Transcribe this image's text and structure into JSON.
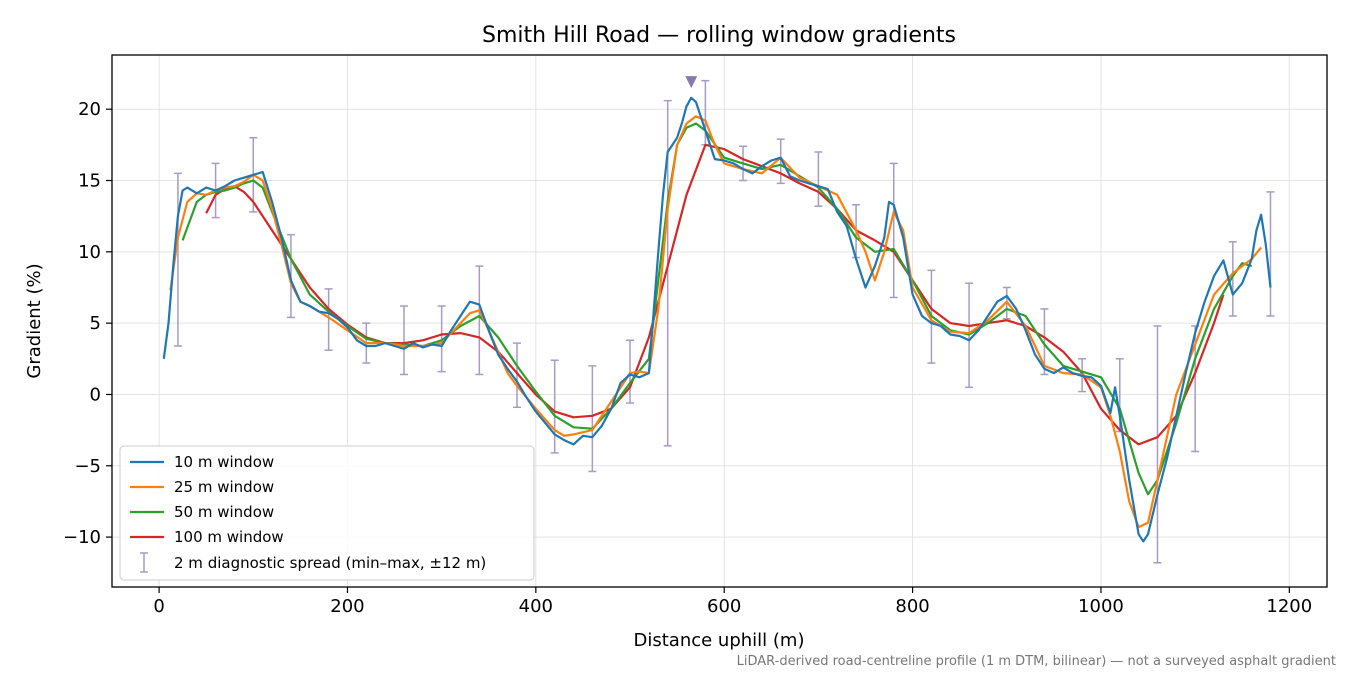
{
  "chart_data": {
    "type": "line",
    "title": "Smith Hill Road — rolling window gradients",
    "xlabel": "Distance uphill (m)",
    "ylabel": "Gradient (%)",
    "footnote": "LiDAR-derived road-centreline profile (1 m DTM, bilinear) — not a surveyed asphalt gradient",
    "xlim": [
      -50,
      1240
    ],
    "ylim": [
      -13.5,
      23.8
    ],
    "xticks": [
      0,
      200,
      400,
      600,
      800,
      1000,
      1200
    ],
    "xtick_labels": [
      "0",
      "200",
      "400",
      "600",
      "800",
      "1000",
      "1200"
    ],
    "yticks": [
      -10,
      -5,
      0,
      5,
      10,
      15,
      20
    ],
    "ytick_labels": [
      "−10",
      "−5",
      "0",
      "5",
      "10",
      "15",
      "20"
    ],
    "grid": true,
    "legend_position": "lower-left",
    "series": [
      {
        "name": "10 m window",
        "color": "#1f77b4",
        "x": [
          5,
          10,
          15,
          20,
          25,
          30,
          40,
          50,
          60,
          70,
          80,
          90,
          100,
          110,
          120,
          130,
          140,
          150,
          160,
          170,
          180,
          190,
          200,
          210,
          220,
          230,
          240,
          250,
          260,
          270,
          280,
          290,
          300,
          310,
          320,
          330,
          340,
          350,
          360,
          370,
          380,
          390,
          400,
          410,
          420,
          430,
          440,
          450,
          460,
          470,
          480,
          490,
          500,
          510,
          520,
          530,
          535,
          540,
          545,
          550,
          555,
          560,
          565,
          570,
          575,
          580,
          590,
          600,
          610,
          620,
          630,
          640,
          650,
          660,
          670,
          680,
          690,
          700,
          710,
          720,
          730,
          740,
          750,
          760,
          770,
          775,
          780,
          790,
          800,
          810,
          820,
          830,
          840,
          850,
          860,
          870,
          880,
          890,
          900,
          910,
          920,
          930,
          940,
          950,
          960,
          970,
          980,
          990,
          1000,
          1010,
          1015,
          1020,
          1030,
          1040,
          1045,
          1050,
          1060,
          1070,
          1080,
          1090,
          1100,
          1110,
          1120,
          1130,
          1140,
          1150,
          1160,
          1165,
          1170,
          1175,
          1180
        ],
        "y": [
          2.5,
          5.0,
          9.0,
          12.5,
          14.3,
          14.5,
          14.1,
          14.5,
          14.3,
          14.6,
          15.0,
          15.2,
          15.4,
          15.6,
          13.5,
          11.0,
          8.0,
          6.5,
          6.2,
          5.8,
          5.7,
          5.3,
          4.7,
          3.8,
          3.4,
          3.4,
          3.6,
          3.4,
          3.2,
          3.6,
          3.3,
          3.5,
          3.4,
          4.5,
          5.5,
          6.5,
          6.3,
          4.5,
          2.8,
          1.8,
          0.9,
          -0.2,
          -1.2,
          -2.0,
          -2.8,
          -3.2,
          -3.5,
          -2.9,
          -3.0,
          -2.2,
          -1.0,
          0.8,
          1.4,
          1.2,
          1.5,
          10.0,
          14.0,
          17.0,
          17.5,
          18.0,
          19.0,
          20.2,
          20.8,
          20.5,
          19.5,
          18.5,
          16.5,
          16.4,
          16.2,
          15.8,
          15.5,
          16.0,
          16.4,
          16.6,
          15.3,
          15.0,
          14.8,
          14.6,
          14.4,
          12.8,
          11.8,
          9.5,
          7.5,
          9.0,
          11.0,
          13.5,
          13.3,
          11.0,
          7.0,
          5.5,
          5.0,
          4.8,
          4.2,
          4.1,
          3.8,
          4.5,
          5.5,
          6.5,
          6.9,
          6.0,
          4.5,
          2.8,
          1.8,
          1.5,
          1.9,
          1.5,
          1.3,
          1.2,
          0.6,
          -1.3,
          0.5,
          -1.5,
          -6.0,
          -9.8,
          -10.3,
          -9.8,
          -7.0,
          -4.5,
          -1.5,
          1.5,
          4.3,
          6.5,
          8.3,
          9.4,
          7.0,
          7.8,
          9.5,
          11.5,
          12.6,
          10.5,
          7.5
        ]
      },
      {
        "name": "25 m window",
        "color": "#ff7f0e",
        "x": [
          12,
          20,
          30,
          40,
          50,
          60,
          70,
          80,
          90,
          100,
          110,
          120,
          130,
          140,
          150,
          160,
          180,
          200,
          220,
          240,
          260,
          280,
          300,
          310,
          320,
          330,
          340,
          350,
          360,
          370,
          380,
          400,
          420,
          430,
          440,
          460,
          480,
          500,
          510,
          520,
          530,
          540,
          550,
          560,
          570,
          580,
          590,
          600,
          620,
          640,
          660,
          680,
          700,
          720,
          740,
          750,
          760,
          770,
          780,
          790,
          800,
          820,
          840,
          860,
          880,
          900,
          920,
          940,
          960,
          980,
          1000,
          1010,
          1020,
          1030,
          1040,
          1050,
          1060,
          1070,
          1080,
          1100,
          1120,
          1140,
          1150,
          1160,
          1170
        ],
        "y": [
          7.3,
          11.0,
          13.5,
          14.1,
          14.0,
          14.3,
          14.5,
          14.6,
          14.9,
          15.4,
          15.0,
          13.0,
          10.5,
          7.8,
          6.5,
          6.2,
          5.4,
          4.5,
          3.6,
          3.6,
          3.4,
          3.4,
          3.6,
          4.3,
          5.0,
          5.7,
          5.9,
          4.5,
          3.0,
          1.5,
          0.6,
          -1.0,
          -2.5,
          -2.9,
          -2.8,
          -2.5,
          -0.5,
          1.5,
          1.6,
          1.5,
          6.0,
          13.0,
          17.5,
          19.0,
          19.5,
          19.2,
          17.5,
          16.2,
          15.8,
          15.5,
          16.6,
          15.2,
          14.6,
          14.0,
          11.5,
          10.0,
          8.0,
          10.0,
          12.8,
          11.5,
          7.5,
          5.2,
          4.4,
          4.3,
          5.2,
          6.5,
          4.8,
          2.0,
          1.5,
          1.4,
          0.5,
          -1.5,
          -4.0,
          -7.5,
          -9.3,
          -9.0,
          -6.0,
          -3.0,
          0.0,
          3.5,
          7.0,
          8.5,
          9.0,
          9.5,
          10.3
        ]
      },
      {
        "name": "50 m window",
        "color": "#2ca02c",
        "x": [
          25,
          40,
          50,
          60,
          70,
          80,
          90,
          100,
          110,
          120,
          140,
          160,
          180,
          200,
          220,
          240,
          260,
          280,
          300,
          320,
          340,
          360,
          380,
          400,
          420,
          440,
          460,
          480,
          500,
          520,
          530,
          540,
          550,
          560,
          570,
          580,
          600,
          620,
          640,
          660,
          680,
          700,
          720,
          740,
          760,
          780,
          800,
          820,
          840,
          860,
          880,
          900,
          920,
          940,
          960,
          980,
          1000,
          1020,
          1040,
          1050,
          1060,
          1080,
          1100,
          1120,
          1140,
          1150,
          1160
        ],
        "y": [
          10.8,
          13.5,
          14.0,
          14.2,
          14.3,
          14.5,
          14.8,
          15.0,
          14.5,
          12.8,
          9.5,
          7.0,
          5.8,
          4.8,
          3.9,
          3.6,
          3.5,
          3.4,
          3.8,
          4.8,
          5.5,
          4.0,
          2.0,
          0.2,
          -1.5,
          -2.3,
          -2.4,
          -1.0,
          0.8,
          2.5,
          8.0,
          13.5,
          17.5,
          18.7,
          19.0,
          18.5,
          16.6,
          16.2,
          15.8,
          16.1,
          15.3,
          14.5,
          13.0,
          11.0,
          10.0,
          10.2,
          8.0,
          5.5,
          4.5,
          4.2,
          5.0,
          6.0,
          5.5,
          3.5,
          2.0,
          1.6,
          1.2,
          -1.0,
          -5.5,
          -7.0,
          -6.0,
          -2.0,
          2.5,
          6.0,
          8.3,
          9.2,
          9.0
        ]
      },
      {
        "name": "100 m window",
        "color": "#d62728",
        "x": [
          50,
          60,
          70,
          80,
          90,
          100,
          120,
          140,
          160,
          180,
          200,
          220,
          240,
          260,
          280,
          300,
          320,
          340,
          360,
          380,
          400,
          420,
          440,
          460,
          480,
          500,
          520,
          540,
          560,
          580,
          600,
          620,
          640,
          660,
          680,
          700,
          720,
          740,
          760,
          780,
          800,
          820,
          840,
          860,
          880,
          900,
          920,
          940,
          960,
          980,
          1000,
          1020,
          1040,
          1060,
          1080,
          1100,
          1120,
          1130
        ],
        "y": [
          12.7,
          14.0,
          14.4,
          14.6,
          14.2,
          13.5,
          11.5,
          9.5,
          7.5,
          6.0,
          4.9,
          4.0,
          3.6,
          3.6,
          3.8,
          4.2,
          4.3,
          4.0,
          3.0,
          1.5,
          0.0,
          -1.2,
          -1.6,
          -1.5,
          -1.0,
          0.5,
          4.0,
          9.0,
          14.0,
          17.5,
          17.2,
          16.5,
          16.0,
          15.5,
          14.8,
          14.2,
          13.0,
          11.5,
          10.8,
          10.0,
          8.0,
          6.0,
          5.0,
          4.8,
          5.0,
          5.2,
          4.8,
          4.0,
          3.0,
          1.5,
          -1.0,
          -2.5,
          -3.5,
          -3.0,
          -1.5,
          1.5,
          5.0,
          7.0
        ]
      }
    ],
    "diagnostic_spread": {
      "name": "2 m diagnostic spread (min–max, ±12 m)",
      "color": "#a79bc4",
      "x": [
        20,
        60,
        100,
        140,
        180,
        220,
        260,
        300,
        340,
        380,
        420,
        460,
        500,
        540,
        580,
        620,
        660,
        700,
        740,
        780,
        820,
        860,
        900,
        940,
        980,
        1020,
        1060,
        1100,
        1140,
        1180
      ],
      "lo": [
        3.4,
        12.4,
        12.8,
        5.4,
        3.1,
        2.2,
        1.4,
        1.6,
        1.4,
        -0.9,
        -4.1,
        -5.4,
        -0.6,
        -3.6,
        17.5,
        15.0,
        14.8,
        13.2,
        9.6,
        6.8,
        2.2,
        0.5,
        5.3,
        1.4,
        0.2,
        -2.6,
        -11.8,
        -4.0,
        5.5,
        5.5
      ],
      "hi": [
        15.5,
        16.2,
        18.0,
        11.2,
        7.4,
        5.0,
        6.2,
        6.2,
        9.0,
        3.6,
        2.4,
        2.0,
        3.8,
        20.6,
        22.0,
        17.4,
        17.9,
        17.0,
        13.3,
        16.2,
        8.7,
        7.8,
        7.5,
        6.0,
        2.5,
        2.5,
        4.8,
        4.8,
        10.7,
        14.2
      ]
    },
    "peak_marker": {
      "x": 565,
      "y": 21.9,
      "color": "#8878b0"
    }
  }
}
